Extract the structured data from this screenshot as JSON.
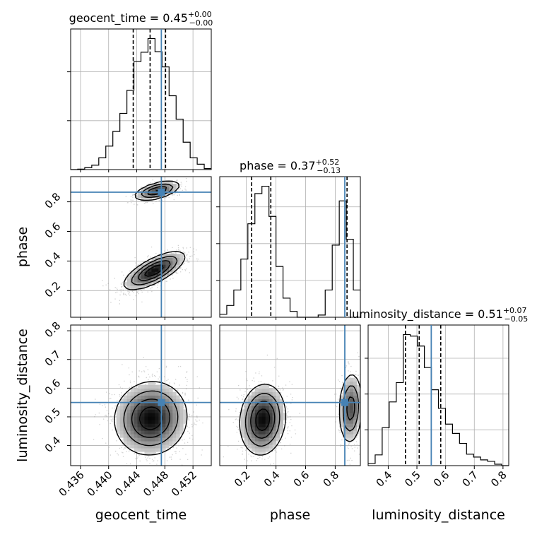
{
  "chart_data": {
    "type": "corner",
    "parameters": [
      "geocent_time",
      "phase",
      "luminosity_distance"
    ],
    "axis_labels": {
      "geocent_time": "geocent_time",
      "phase": "phase",
      "luminosity_distance": "luminosity_distance"
    },
    "ranges": {
      "geocent_time": [
        0.4346,
        0.4546
      ],
      "phase": [
        0.02,
        0.97
      ],
      "luminosity_distance": [
        0.33,
        0.82
      ]
    },
    "ticks": {
      "geocent_time": [
        "0.436",
        "0.440",
        "0.444",
        "0.448",
        "0.452"
      ],
      "phase": [
        "0.2",
        "0.4",
        "0.6",
        "0.8"
      ],
      "luminosity_distance": [
        "0.4",
        "0.5",
        "0.6",
        "0.7",
        "0.8"
      ]
    },
    "truths": {
      "geocent_time": 0.4475,
      "phase": 0.865,
      "luminosity_distance": 0.55
    },
    "truth_color": "#4682b4",
    "summaries": [
      {
        "param": "geocent_time",
        "prefix": "geocent_time = ",
        "median": "0.45",
        "plus": "+0.00",
        "minus": "−0.00",
        "lines": [
          0.4435,
          0.4459,
          0.4481
        ]
      },
      {
        "param": "phase",
        "prefix": "phase = ",
        "median": "0.37",
        "plus": "+0.52",
        "minus": "−0.13",
        "lines": [
          0.235,
          0.365,
          0.88
        ]
      },
      {
        "param": "luminosity_distance",
        "prefix": "luminosity_distance = ",
        "median": "0.51",
        "plus": "+0.07",
        "minus": "−0.05",
        "lines": [
          0.46,
          0.508,
          0.583
        ]
      }
    ],
    "histograms": {
      "geocent_time": {
        "edges": [
          0.4346,
          0.4356,
          0.4366,
          0.4376,
          0.4386,
          0.4396,
          0.4406,
          0.4416,
          0.4426,
          0.4436,
          0.4446,
          0.4456,
          0.4466,
          0.4476,
          0.4486,
          0.4496,
          0.4506,
          0.4516,
          0.4526,
          0.4536,
          0.4546
        ],
        "counts": [
          0,
          1,
          4,
          9,
          24,
          48,
          78,
          115,
          162,
          221,
          240,
          268,
          241,
          210,
          151,
          103,
          56,
          24,
          11,
          2
        ]
      },
      "phase": {
        "edges": [
          0.02,
          0.0675,
          0.115,
          0.1625,
          0.21,
          0.2575,
          0.305,
          0.3525,
          0.4,
          0.4475,
          0.495,
          0.5425,
          0.59,
          0.6375,
          0.685,
          0.7325,
          0.78,
          0.8275,
          0.875,
          0.9225,
          0.97
        ],
        "counts": [
          4,
          16,
          37,
          79,
          127,
          168,
          178,
          137,
          69,
          26,
          8,
          0,
          0,
          0,
          3,
          37,
          98,
          158,
          106,
          37
        ]
      },
      "luminosity_distance": {
        "edges": [
          0.33,
          0.3545,
          0.379,
          0.4035,
          0.428,
          0.4525,
          0.477,
          0.5015,
          0.526,
          0.5505,
          0.575,
          0.5995,
          0.624,
          0.6485,
          0.673,
          0.6975,
          0.722,
          0.7465,
          0.771,
          0.7955,
          0.82
        ],
        "counts": [
          3,
          15,
          53,
          89,
          116,
          183,
          181,
          167,
          137,
          106,
          80,
          58,
          45,
          31,
          16,
          12,
          8,
          6,
          2,
          0
        ]
      }
    },
    "clusters": {
      "geocent_time|phase": [
        {
          "mx": 0.4465,
          "my": 0.335,
          "sx": 0.0021,
          "sy": 0.062,
          "rho": 0.72,
          "weight": 0.72
        },
        {
          "mx": 0.4469,
          "my": 0.875,
          "sx": 0.0016,
          "sy": 0.032,
          "rho": 0.55,
          "weight": 0.28
        }
      ],
      "geocent_time|luminosity_distance": [
        {
          "mx": 0.446,
          "my": 0.495,
          "sx": 0.0025,
          "sy": 0.062,
          "rho": 0.05,
          "weight": 1.0
        }
      ],
      "phase|luminosity_distance": [
        {
          "mx": 0.31,
          "my": 0.49,
          "sx": 0.075,
          "sy": 0.06,
          "rho": 0.1,
          "weight": 0.72
        },
        {
          "mx": 0.905,
          "my": 0.53,
          "sx": 0.04,
          "sy": 0.062,
          "rho": 0.1,
          "weight": 0.28
        }
      ]
    },
    "contour_levels": [
      0.12,
      0.39,
      0.68,
      0.865
    ]
  }
}
